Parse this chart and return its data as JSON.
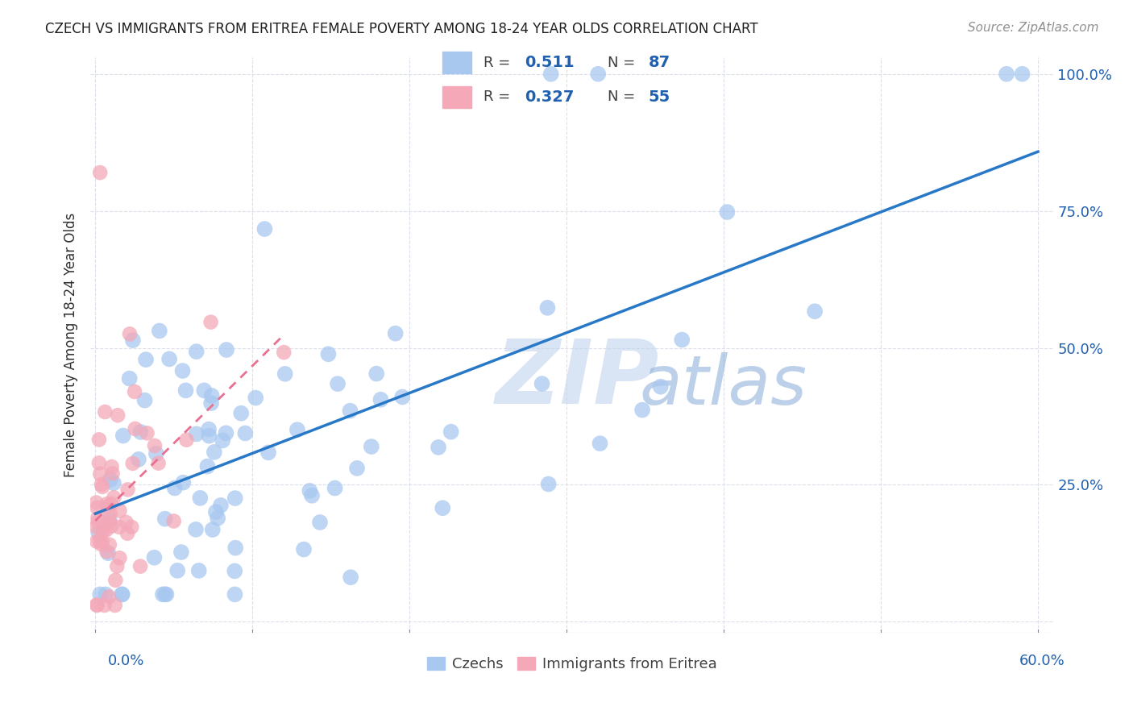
{
  "title": "CZECH VS IMMIGRANTS FROM ERITREA FEMALE POVERTY AMONG 18-24 YEAR OLDS CORRELATION CHART",
  "source": "Source: ZipAtlas.com",
  "ylabel": "Female Poverty Among 18-24 Year Olds",
  "legend_blue_r": "0.511",
  "legend_blue_n": "87",
  "legend_pink_r": "0.327",
  "legend_pink_n": "55",
  "blue_color": "#a8c8f0",
  "pink_color": "#f4a8b8",
  "blue_line_color": "#2878c8",
  "pink_line_color": "#e87090",
  "blue_legend_color": "#a8c8f0",
  "pink_legend_color": "#f4a8b8",
  "watermark_zip_color": "#c8d8f0",
  "watermark_atlas_color": "#90b8e0",
  "grid_color": "#d8dce8",
  "text_color_blue": "#2060b0",
  "text_color_dark": "#303030",
  "xmin": 0,
  "xmax": 60,
  "ymin": 0,
  "ymax": 100,
  "xtick_positions": [
    0,
    10,
    20,
    30,
    40,
    50,
    60
  ],
  "ytick_positions": [
    0,
    25,
    50,
    75,
    100
  ],
  "ytick_labels": [
    "",
    "25.0%",
    "50.0%",
    "75.0%",
    "100.0%"
  ]
}
